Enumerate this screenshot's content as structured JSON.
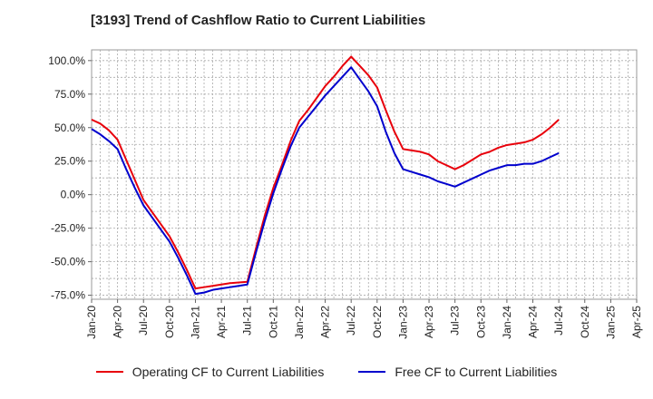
{
  "chart_data": {
    "type": "line",
    "title": "[3193]  Trend of Cashflow Ratio to Current Liabilities",
    "xlabel": "",
    "ylabel": "",
    "ylim": [
      -78,
      108
    ],
    "y_ticks": [
      100,
      75,
      50,
      25,
      0,
      -25,
      -50,
      -75
    ],
    "y_tick_labels": [
      "100.0%",
      "75.0%",
      "50.0%",
      "25.0%",
      "0.0%",
      "-25.0%",
      "-50.0%",
      "-75.0%"
    ],
    "x_tick_labels": [
      "Jan-20",
      "Apr-20",
      "Jul-20",
      "Oct-20",
      "Jan-21",
      "Apr-21",
      "Jul-21",
      "Oct-21",
      "Jan-22",
      "Apr-22",
      "Jul-22",
      "Oct-22",
      "Jan-23",
      "Apr-23",
      "Jul-23",
      "Oct-23",
      "Jan-24",
      "Apr-24",
      "Jul-24",
      "Oct-24",
      "Jan-25",
      "Apr-25"
    ],
    "x": [
      "Jan-20",
      "Feb-20",
      "Mar-20",
      "Apr-20",
      "May-20",
      "Jun-20",
      "Jul-20",
      "Aug-20",
      "Sep-20",
      "Oct-20",
      "Nov-20",
      "Dec-20",
      "Jan-21",
      "Feb-21",
      "Mar-21",
      "Apr-21",
      "May-21",
      "Jun-21",
      "Jul-21",
      "Aug-21",
      "Sep-21",
      "Oct-21",
      "Nov-21",
      "Dec-21",
      "Jan-22",
      "Feb-22",
      "Mar-22",
      "Apr-22",
      "May-22",
      "Jun-22",
      "Jul-22",
      "Aug-22",
      "Sep-22",
      "Oct-22",
      "Nov-22",
      "Dec-22",
      "Jan-23",
      "Feb-23",
      "Mar-23",
      "Apr-23",
      "May-23",
      "Jun-23",
      "Jul-23",
      "Aug-23",
      "Sep-23",
      "Oct-23",
      "Nov-23",
      "Dec-23",
      "Jan-24",
      "Feb-24",
      "Mar-24",
      "Apr-24",
      "May-24",
      "Jun-24",
      "Jul-24"
    ],
    "series": [
      {
        "name": "Operating CF to Current Liabilities",
        "color": "#e8000b",
        "values": [
          56,
          53,
          48,
          41,
          26,
          11,
          -4,
          -13,
          -22,
          -31,
          -43,
          -56,
          -70,
          -69,
          -68,
          -67,
          -66,
          -65.5,
          -65,
          -40,
          -16,
          5,
          22,
          40,
          55,
          63,
          72,
          81,
          88,
          96,
          103,
          96,
          89,
          80,
          63,
          47,
          34,
          33,
          32,
          30,
          25,
          22,
          19,
          22,
          26,
          30,
          32,
          35,
          37,
          38,
          39,
          41,
          45,
          50,
          56
        ]
      },
      {
        "name": "Free CF to Current Liabilities",
        "color": "#0000cd",
        "values": [
          49,
          45,
          40,
          34,
          19,
          5,
          -8,
          -17,
          -26,
          -35,
          -47,
          -60,
          -74,
          -73,
          -71,
          -70,
          -69,
          -68,
          -67,
          -43,
          -20,
          1,
          19,
          36,
          50,
          58,
          66,
          74,
          81,
          88,
          95,
          86,
          77,
          66,
          47,
          31,
          19,
          17,
          15,
          13,
          10,
          8,
          6,
          9,
          12,
          15,
          18,
          20,
          22,
          22,
          23,
          23,
          25,
          28,
          31
        ]
      }
    ],
    "grid": true,
    "legend": "bottom"
  }
}
